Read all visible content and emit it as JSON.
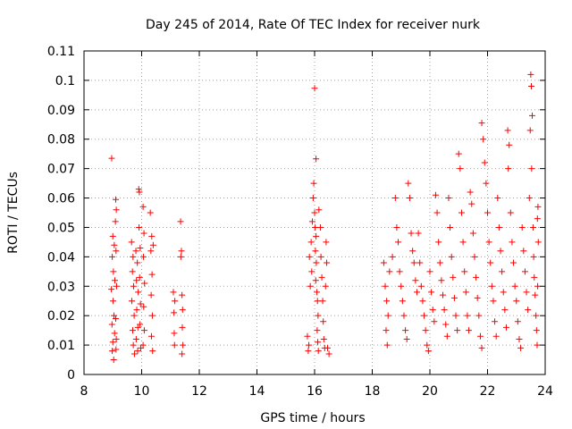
{
  "chart_data": {
    "type": "scatter",
    "title": "Day 245 of 2014, Rate Of TEC Index for receiver nurk",
    "xlabel": "GPS time / hours",
    "ylabel": "ROTI / TECUs",
    "xlim": [
      8,
      24
    ],
    "ylim": [
      0,
      0.11
    ],
    "grid": true,
    "marker": "+",
    "color": "#ff0000",
    "x_ticks": [
      {
        "value": 8,
        "label": "8"
      },
      {
        "value": 10,
        "label": "10"
      },
      {
        "value": 12,
        "label": "12"
      },
      {
        "value": 14,
        "label": "14"
      },
      {
        "value": 16,
        "label": "16"
      },
      {
        "value": 18,
        "label": "18"
      },
      {
        "value": 20,
        "label": "20"
      },
      {
        "value": 22,
        "label": "22"
      },
      {
        "value": 24,
        "label": "24"
      }
    ],
    "y_ticks": [
      {
        "value": 0,
        "label": "0"
      },
      {
        "value": 0.01,
        "label": "0.01"
      },
      {
        "value": 0.02,
        "label": "0.02"
      },
      {
        "value": 0.03,
        "label": "0.03"
      },
      {
        "value": 0.04,
        "label": "0.04"
      },
      {
        "value": 0.05,
        "label": "0.05"
      },
      {
        "value": 0.06,
        "label": "0.06"
      },
      {
        "value": 0.07,
        "label": "0.07"
      },
      {
        "value": 0.08,
        "label": "0.08"
      },
      {
        "value": 0.09,
        "label": "0.09"
      },
      {
        "value": 0.1,
        "label": "0.1"
      },
      {
        "value": 0.11,
        "label": "0.11"
      }
    ],
    "series": [
      {
        "name": "ROTI",
        "points": [
          [
            8.96,
            0.0735
          ],
          [
            9.0,
            0.047
          ],
          [
            9.05,
            0.044
          ],
          [
            8.98,
            0.04
          ],
          [
            9.02,
            0.035
          ],
          [
            9.07,
            0.032
          ],
          [
            8.95,
            0.029
          ],
          [
            9.01,
            0.025
          ],
          [
            9.04,
            0.02
          ],
          [
            8.97,
            0.017
          ],
          [
            9.06,
            0.014
          ],
          [
            9.0,
            0.011
          ],
          [
            8.98,
            0.008
          ],
          [
            9.03,
            0.005
          ],
          [
            9.1,
            0.0595
          ],
          [
            9.12,
            0.056
          ],
          [
            9.09,
            0.052
          ],
          [
            9.11,
            0.042
          ],
          [
            9.13,
            0.03
          ],
          [
            9.1,
            0.019
          ],
          [
            9.12,
            0.012
          ],
          [
            9.11,
            0.0085
          ],
          [
            9.65,
            0.045
          ],
          [
            9.7,
            0.04
          ],
          [
            9.68,
            0.035
          ],
          [
            9.72,
            0.03
          ],
          [
            9.66,
            0.025
          ],
          [
            9.74,
            0.02
          ],
          [
            9.69,
            0.015
          ],
          [
            9.71,
            0.01
          ],
          [
            9.75,
            0.007
          ],
          [
            9.8,
            0.042
          ],
          [
            9.85,
            0.038
          ],
          [
            9.82,
            0.032
          ],
          [
            9.88,
            0.028
          ],
          [
            9.83,
            0.022
          ],
          [
            9.87,
            0.016
          ],
          [
            9.81,
            0.012
          ],
          [
            9.86,
            0.008
          ],
          [
            9.9,
            0.063
          ],
          [
            9.92,
            0.062
          ],
          [
            9.91,
            0.05
          ],
          [
            9.95,
            0.043
          ],
          [
            9.93,
            0.033
          ],
          [
            9.96,
            0.024
          ],
          [
            9.94,
            0.017
          ],
          [
            9.97,
            0.009
          ],
          [
            10.05,
            0.057
          ],
          [
            10.08,
            0.048
          ],
          [
            10.06,
            0.04
          ],
          [
            10.1,
            0.031
          ],
          [
            10.07,
            0.023
          ],
          [
            10.09,
            0.015
          ],
          [
            10.05,
            0.01
          ],
          [
            10.3,
            0.055
          ],
          [
            10.35,
            0.047
          ],
          [
            10.32,
            0.042
          ],
          [
            10.36,
            0.034
          ],
          [
            10.33,
            0.027
          ],
          [
            10.37,
            0.02
          ],
          [
            10.34,
            0.013
          ],
          [
            10.38,
            0.008
          ],
          [
            10.4,
            0.044
          ],
          [
            11.35,
            0.052
          ],
          [
            11.38,
            0.042
          ],
          [
            11.36,
            0.04
          ],
          [
            11.1,
            0.028
          ],
          [
            11.15,
            0.025
          ],
          [
            11.12,
            0.021
          ],
          [
            11.13,
            0.014
          ],
          [
            11.14,
            0.01
          ],
          [
            11.4,
            0.027
          ],
          [
            11.42,
            0.022
          ],
          [
            11.41,
            0.016
          ],
          [
            11.43,
            0.01
          ],
          [
            11.4,
            0.007
          ],
          [
            15.75,
            0.013
          ],
          [
            15.8,
            0.01
          ],
          [
            15.78,
            0.008
          ],
          [
            15.85,
            0.03
          ],
          [
            15.82,
            0.04
          ],
          [
            15.9,
            0.035
          ],
          [
            15.88,
            0.045
          ],
          [
            15.92,
            0.052
          ],
          [
            15.95,
            0.06
          ],
          [
            15.97,
            0.065
          ],
          [
            16.0,
            0.055
          ],
          [
            16.02,
            0.05
          ],
          [
            16.05,
            0.047
          ],
          [
            16.03,
            0.042
          ],
          [
            16.06,
            0.038
          ],
          [
            16.04,
            0.032
          ],
          [
            16.08,
            0.028
          ],
          [
            16.1,
            0.025
          ],
          [
            16.12,
            0.02
          ],
          [
            16.09,
            0.015
          ],
          [
            16.11,
            0.011
          ],
          [
            16.13,
            0.008
          ],
          [
            16.0,
            0.0973
          ],
          [
            16.05,
            0.0733
          ],
          [
            16.15,
            0.056
          ],
          [
            16.2,
            0.05
          ],
          [
            16.22,
            0.04
          ],
          [
            16.25,
            0.033
          ],
          [
            16.28,
            0.025
          ],
          [
            16.3,
            0.018
          ],
          [
            16.32,
            0.012
          ],
          [
            16.35,
            0.009
          ],
          [
            16.4,
            0.045
          ],
          [
            16.42,
            0.038
          ],
          [
            16.38,
            0.03
          ],
          [
            16.45,
            0.009
          ],
          [
            16.5,
            0.007
          ],
          [
            18.4,
            0.038
          ],
          [
            18.45,
            0.03
          ],
          [
            18.5,
            0.025
          ],
          [
            18.55,
            0.02
          ],
          [
            18.48,
            0.015
          ],
          [
            18.52,
            0.01
          ],
          [
            18.6,
            0.035
          ],
          [
            18.7,
            0.04
          ],
          [
            18.8,
            0.06
          ],
          [
            18.85,
            0.05
          ],
          [
            18.9,
            0.045
          ],
          [
            18.95,
            0.035
          ],
          [
            19.0,
            0.03
          ],
          [
            19.05,
            0.025
          ],
          [
            19.1,
            0.02
          ],
          [
            19.15,
            0.015
          ],
          [
            19.2,
            0.012
          ],
          [
            19.25,
            0.065
          ],
          [
            19.3,
            0.06
          ],
          [
            19.35,
            0.048
          ],
          [
            19.4,
            0.042
          ],
          [
            19.45,
            0.038
          ],
          [
            19.5,
            0.032
          ],
          [
            19.55,
            0.028
          ],
          [
            19.6,
            0.048
          ],
          [
            19.65,
            0.038
          ],
          [
            19.7,
            0.03
          ],
          [
            19.75,
            0.025
          ],
          [
            19.8,
            0.02
          ],
          [
            19.85,
            0.015
          ],
          [
            19.9,
            0.01
          ],
          [
            19.95,
            0.008
          ],
          [
            20.0,
            0.035
          ],
          [
            20.05,
            0.028
          ],
          [
            20.1,
            0.022
          ],
          [
            20.15,
            0.018
          ],
          [
            20.2,
            0.061
          ],
          [
            20.25,
            0.055
          ],
          [
            20.3,
            0.045
          ],
          [
            20.35,
            0.038
          ],
          [
            20.4,
            0.032
          ],
          [
            20.45,
            0.027
          ],
          [
            20.5,
            0.022
          ],
          [
            20.55,
            0.017
          ],
          [
            20.6,
            0.013
          ],
          [
            20.65,
            0.06
          ],
          [
            20.7,
            0.05
          ],
          [
            20.75,
            0.04
          ],
          [
            20.8,
            0.033
          ],
          [
            20.85,
            0.026
          ],
          [
            20.9,
            0.02
          ],
          [
            20.95,
            0.015
          ],
          [
            21.0,
            0.075
          ],
          [
            21.05,
            0.07
          ],
          [
            21.1,
            0.055
          ],
          [
            21.15,
            0.045
          ],
          [
            21.2,
            0.035
          ],
          [
            21.25,
            0.028
          ],
          [
            21.3,
            0.02
          ],
          [
            21.35,
            0.015
          ],
          [
            21.4,
            0.062
          ],
          [
            21.45,
            0.058
          ],
          [
            21.5,
            0.048
          ],
          [
            21.55,
            0.04
          ],
          [
            21.6,
            0.033
          ],
          [
            21.65,
            0.026
          ],
          [
            21.7,
            0.02
          ],
          [
            21.75,
            0.013
          ],
          [
            21.8,
            0.009
          ],
          [
            21.8,
            0.0855
          ],
          [
            21.85,
            0.08
          ],
          [
            21.9,
            0.072
          ],
          [
            21.95,
            0.065
          ],
          [
            22.0,
            0.055
          ],
          [
            22.05,
            0.045
          ],
          [
            22.1,
            0.038
          ],
          [
            22.15,
            0.03
          ],
          [
            22.2,
            0.025
          ],
          [
            22.25,
            0.018
          ],
          [
            22.3,
            0.013
          ],
          [
            22.35,
            0.06
          ],
          [
            22.4,
            0.05
          ],
          [
            22.45,
            0.042
          ],
          [
            22.5,
            0.035
          ],
          [
            22.55,
            0.028
          ],
          [
            22.6,
            0.022
          ],
          [
            22.65,
            0.016
          ],
          [
            22.7,
            0.083
          ],
          [
            22.75,
            0.078
          ],
          [
            22.72,
            0.07
          ],
          [
            22.8,
            0.055
          ],
          [
            22.85,
            0.045
          ],
          [
            22.9,
            0.038
          ],
          [
            22.95,
            0.03
          ],
          [
            23.0,
            0.025
          ],
          [
            23.05,
            0.018
          ],
          [
            23.1,
            0.012
          ],
          [
            23.15,
            0.009
          ],
          [
            23.2,
            0.05
          ],
          [
            23.25,
            0.042
          ],
          [
            23.3,
            0.035
          ],
          [
            23.35,
            0.028
          ],
          [
            23.4,
            0.022
          ],
          [
            23.45,
            0.06
          ],
          [
            23.5,
            0.102
          ],
          [
            23.52,
            0.098
          ],
          [
            23.55,
            0.088
          ],
          [
            23.48,
            0.083
          ],
          [
            23.53,
            0.07
          ],
          [
            23.58,
            0.05
          ],
          [
            23.6,
            0.04
          ],
          [
            23.62,
            0.033
          ],
          [
            23.65,
            0.027
          ],
          [
            23.68,
            0.02
          ],
          [
            23.7,
            0.015
          ],
          [
            23.72,
            0.01
          ],
          [
            23.75,
            0.057
          ],
          [
            23.73,
            0.053
          ],
          [
            23.76,
            0.045
          ],
          [
            23.74,
            0.03
          ]
        ]
      }
    ]
  }
}
